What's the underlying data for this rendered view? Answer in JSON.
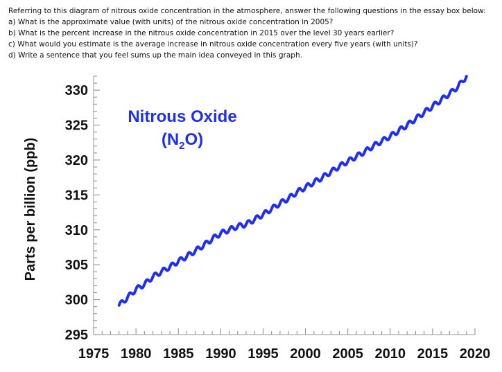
{
  "questions": {
    "intro": "Referring to this diagram of nitrous oxide concentration in the atmosphere, answer the following questions in the essay box below:",
    "a": "a) What is the approximate value (with units) of the nitrous oxide concentration in 2005?",
    "b": "b) What is the percent increase in the nitrous oxide concentration in 2015 over the level 30 years earlier?",
    "c": "c) What would you estimate is the average increase in nitrous oxide concentration every five years (with units)?",
    "d": "d) Write a sentence that you feel sums up the main idea conveyed in this graph."
  },
  "chart_data": {
    "type": "line",
    "title": "Nitrous Oxide",
    "subtitle_main": "(N",
    "subtitle_sub": "2",
    "subtitle_end": "O)",
    "ylabel": "Parts per billion (ppb)",
    "xlabel": "",
    "xlim": [
      1975,
      2020
    ],
    "ylim": [
      295,
      332
    ],
    "x_ticks": [
      1975,
      1980,
      1985,
      1990,
      1995,
      2000,
      2005,
      2010,
      2015,
      2020
    ],
    "y_ticks": [
      295,
      300,
      305,
      310,
      315,
      320,
      325,
      330
    ],
    "line_color": "#1f2ef0",
    "title_color": "#1f2ef0",
    "grid": false,
    "series": [
      {
        "x": [
          1978.0,
          1979.0,
          1980.0,
          1981.0,
          1982.0,
          1983.0,
          1984.0,
          1985.0,
          1986.0,
          1987.0,
          1988.0,
          1989.0,
          1990.0,
          1991.0,
          1992.0,
          1993.0,
          1994.0,
          1995.0,
          1996.0,
          1997.0,
          1998.0,
          1999.0,
          2000.0,
          2001.0,
          2002.0,
          2003.0,
          2004.0,
          2005.0,
          2006.0,
          2007.0,
          2008.0,
          2009.0,
          2010.0,
          2011.0,
          2012.0,
          2013.0,
          2014.0,
          2015.0,
          2016.0,
          2017.0,
          2018.0,
          2019.0
        ],
        "values": [
          299.2,
          300.3,
          301.5,
          302.2,
          303.3,
          304.0,
          304.7,
          305.5,
          306.2,
          307.0,
          307.8,
          308.7,
          309.5,
          310.0,
          310.5,
          310.8,
          311.5,
          312.2,
          313.0,
          313.8,
          314.5,
          315.4,
          316.1,
          316.8,
          317.5,
          318.3,
          319.1,
          319.8,
          320.5,
          321.2,
          322.0,
          322.7,
          323.4,
          324.2,
          325.0,
          325.9,
          326.8,
          327.7,
          328.6,
          329.5,
          330.5,
          332.0
        ]
      }
    ]
  }
}
